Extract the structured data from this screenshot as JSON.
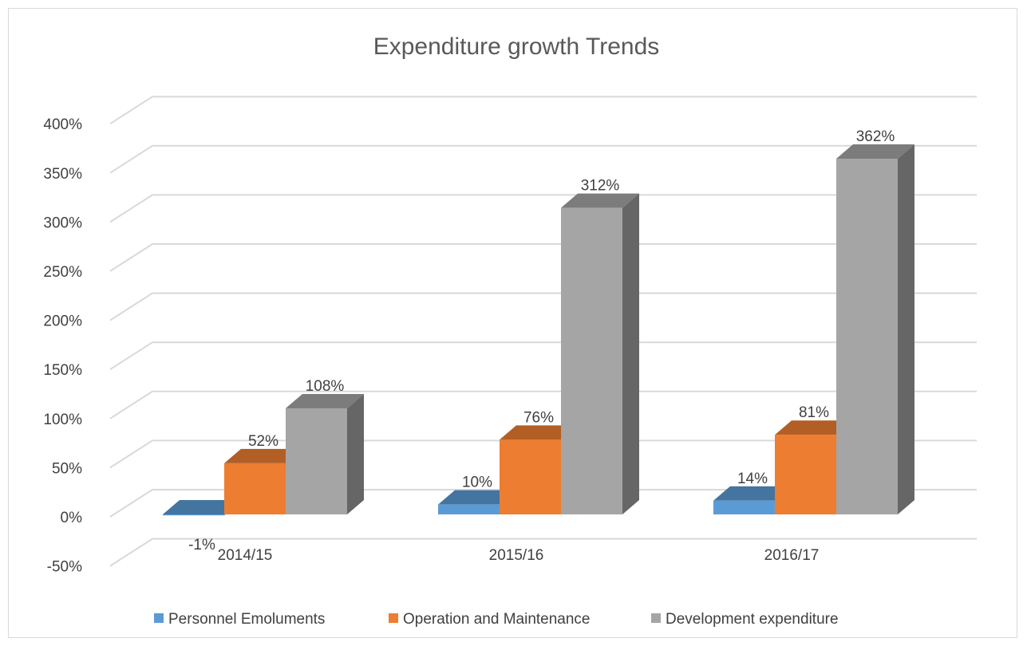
{
  "chart_data": {
    "type": "bar",
    "title": "Expenditure growth Trends",
    "categories": [
      "2014/15",
      "2015/16",
      "2016/17"
    ],
    "series": [
      {
        "name": "Personnel Emoluments",
        "values": [
          -1,
          10,
          14
        ],
        "labels": [
          "-1%",
          "10%",
          "14%"
        ],
        "color": "#5b9bd5"
      },
      {
        "name": "Operation and Maintenance",
        "values": [
          52,
          76,
          81
        ],
        "labels": [
          "52%",
          "76%",
          "81%"
        ],
        "color": "#ed7d31"
      },
      {
        "name": "Development expenditure",
        "values": [
          108,
          312,
          362
        ],
        "labels": [
          "108%",
          "312%",
          "362%"
        ],
        "color": "#a5a5a5"
      }
    ],
    "ylim": [
      -50,
      400
    ],
    "yticks": [
      -50,
      0,
      50,
      100,
      150,
      200,
      250,
      300,
      350,
      400
    ],
    "ytick_labels": [
      "-50%",
      "0%",
      "50%",
      "100%",
      "150%",
      "200%",
      "250%",
      "300%",
      "350%",
      "400%"
    ],
    "grid": true,
    "legend_position": "bottom",
    "style": "3d-clustered-column"
  }
}
